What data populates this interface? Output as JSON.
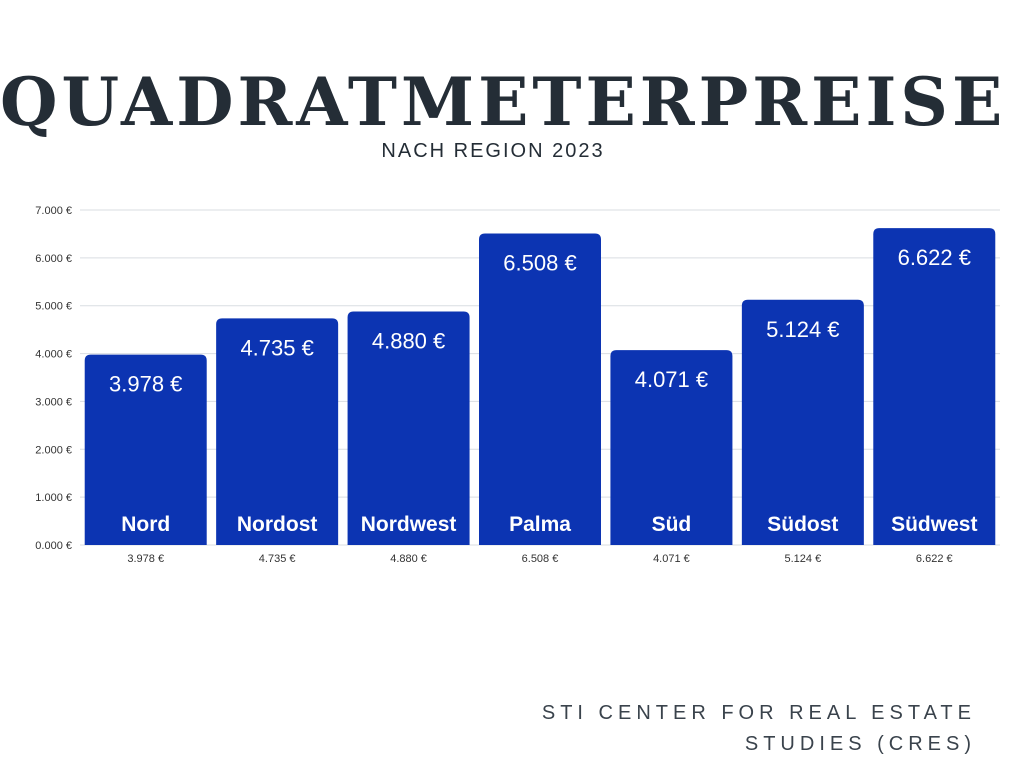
{
  "title": "QUADRATMETERPREISE",
  "subtitle": "NACH REGION 2023",
  "source": [
    "STI CENTER FOR REAL ESTATE",
    "STUDIES (CRES)"
  ],
  "colors": {
    "bar": "#0c34b2",
    "title": "#242d36",
    "grid": "#d9dde2",
    "tick": "#333333"
  },
  "chart_data": {
    "type": "bar",
    "title": "QUADRATMETERPREISE",
    "subtitle": "NACH REGION 2023",
    "xlabel": "",
    "ylabel": "",
    "categories": [
      "Nord",
      "Nordost",
      "Nordwest",
      "Palma",
      "Süd",
      "Südost",
      "Südwest"
    ],
    "values": [
      3978,
      4735,
      4880,
      6508,
      4071,
      5124,
      6622
    ],
    "value_labels": [
      "3.978 €",
      "4.735 €",
      "4.880 €",
      "6.508 €",
      "4.071 €",
      "5.124 €",
      "6.622 €"
    ],
    "y_ticks": [
      "0.000 €",
      "1.000 €",
      "2.000 €",
      "3.000 €",
      "4.000 €",
      "5.000 €",
      "6.000 €",
      "7.000 €"
    ],
    "ylim": [
      0,
      7000
    ],
    "grid": true,
    "legend": "none"
  }
}
